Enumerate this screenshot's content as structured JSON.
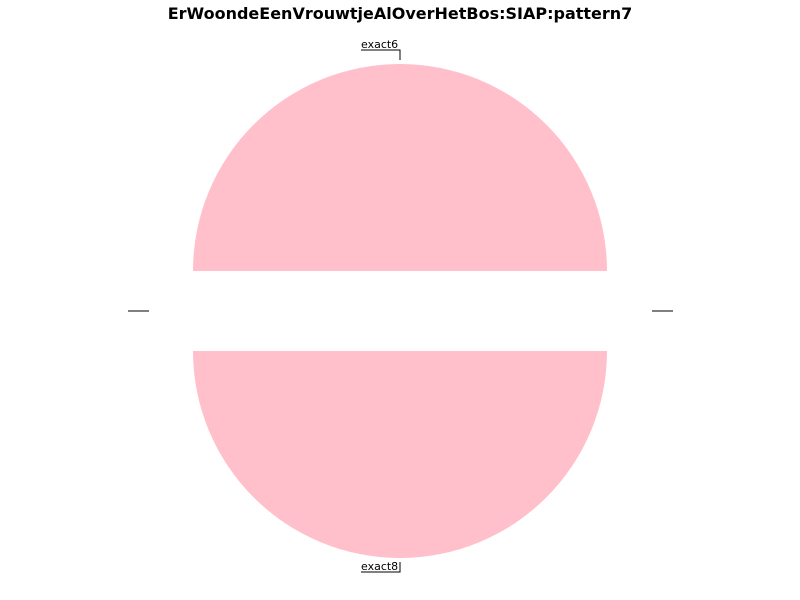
{
  "chart_data": {
    "type": "pie",
    "title": "ErWoondeEenVrouwtjeAlOverHetBos:SIAP:pattern7",
    "slices": [
      {
        "label": "exact6",
        "value": 50,
        "color": "#ffc0cb"
      },
      {
        "label": "exact8",
        "value": 50,
        "color": "#ffc0cb"
      }
    ],
    "legend": "none"
  }
}
